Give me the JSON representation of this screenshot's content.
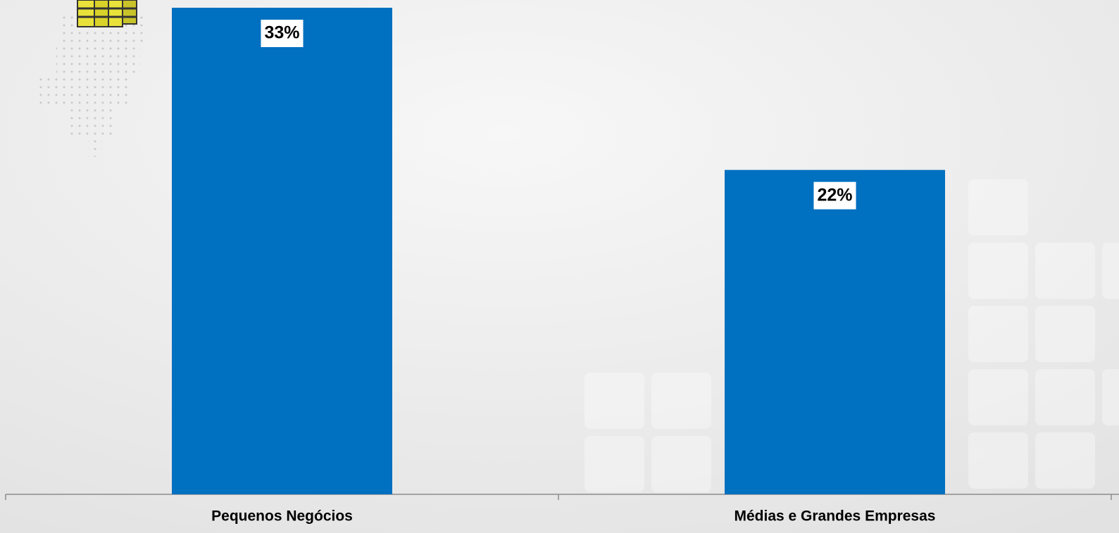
{
  "chart_data": {
    "type": "bar",
    "categories": [
      "Pequenos Negócios",
      "Médias e Grandes Empresas"
    ],
    "values": [
      33,
      22
    ],
    "value_labels": [
      "33%",
      "22%"
    ],
    "color": "#0070c0"
  }
}
